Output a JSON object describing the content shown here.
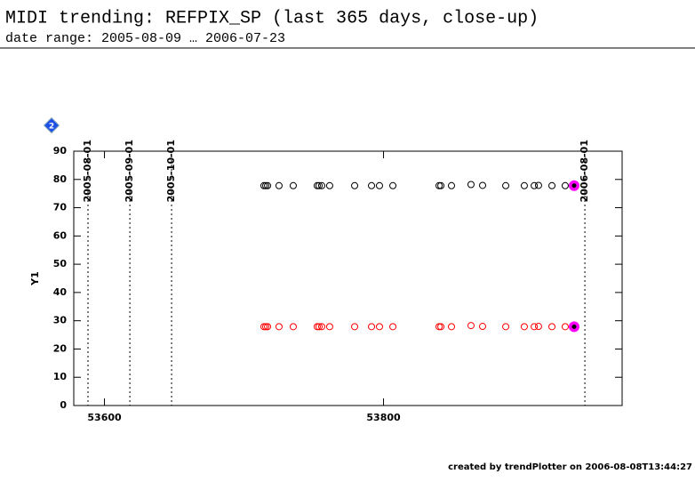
{
  "title": "MIDI trending: REFPIX_SP (last 365 days, close-up)",
  "subtitle": "date range: 2005-08-09 … 2006-07-23",
  "footer": "created by trendPlotter on 2006-08-08T13:44:27",
  "chart_data": {
    "type": "scatter",
    "ylabel": "Y1",
    "badge": "2",
    "xlim": [
      53578,
      53971
    ],
    "xticks": [
      53600,
      53800
    ],
    "ylim": [
      0,
      90
    ],
    "yticks": [
      0,
      10,
      20,
      30,
      40,
      50,
      60,
      70,
      80,
      90
    ],
    "date_lines": {
      "labels": [
        "2005-08-01",
        "2005-09-01",
        "2005-10-01",
        "2006-08-01"
      ],
      "x": [
        53588.2,
        53618.2,
        53648.1,
        53944.3
      ]
    },
    "highlight_color": "#ff00ff",
    "series": [
      {
        "color": "#000000",
        "x": [
          53714.3,
          53715.6,
          53716.9,
          53725.1,
          53735.3,
          53752.5,
          53753.8,
          53755.7,
          53761.4,
          53779.3,
          53791.4,
          53797.1,
          53806.7,
          53839.8,
          53841.1,
          53848.7,
          53862.7,
          53871.0,
          53887.6,
          53900.9,
          53908.0,
          53911.1,
          53920.7,
          53930.2,
          53936.6
        ],
        "values": [
          77.8,
          77.8,
          77.8,
          77.8,
          77.8,
          77.8,
          77.8,
          77.8,
          77.8,
          77.8,
          77.8,
          77.8,
          77.8,
          77.8,
          77.8,
          77.8,
          78.2,
          77.9,
          77.8,
          77.8,
          77.8,
          77.9,
          77.8,
          77.8,
          77.8
        ]
      },
      {
        "color": "#ff0000",
        "x": [
          53714.3,
          53715.6,
          53716.9,
          53725.1,
          53735.3,
          53752.5,
          53753.8,
          53755.7,
          53761.4,
          53779.3,
          53791.4,
          53797.1,
          53806.7,
          53839.8,
          53841.1,
          53848.7,
          53862.7,
          53871.0,
          53887.6,
          53900.9,
          53908.0,
          53911.1,
          53920.7,
          53930.2,
          53936.6
        ],
        "values": [
          27.9,
          27.9,
          27.9,
          27.9,
          27.9,
          27.9,
          27.9,
          27.9,
          27.9,
          27.9,
          27.9,
          27.9,
          27.9,
          27.9,
          27.9,
          27.9,
          28.3,
          28.0,
          27.9,
          27.9,
          27.9,
          28.0,
          27.9,
          27.9,
          27.9
        ]
      }
    ]
  }
}
